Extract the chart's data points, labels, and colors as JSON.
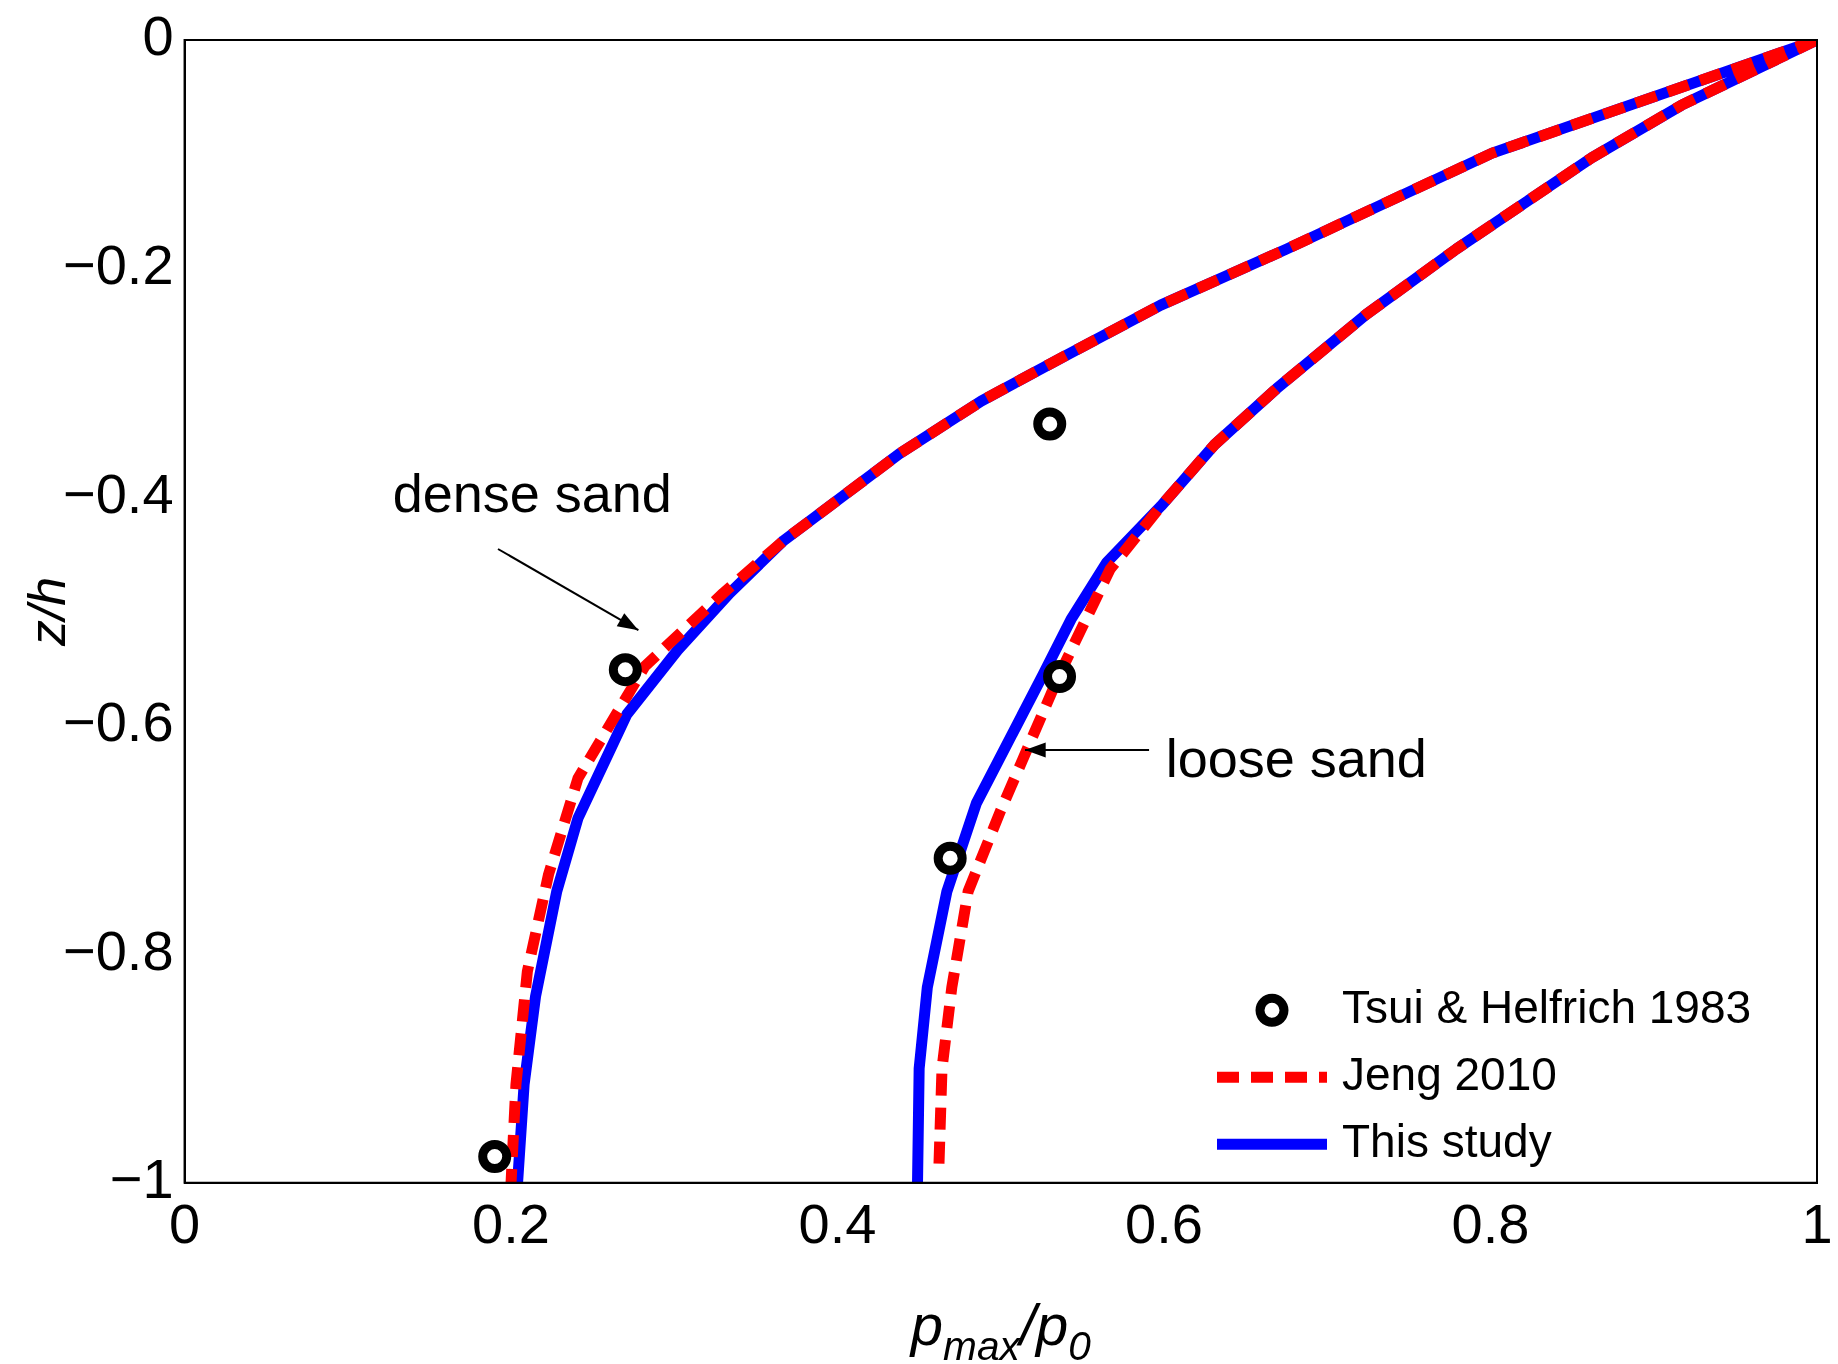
{
  "chart_data": {
    "type": "line",
    "xlabel": "p$_{max}$/p$_{0}$",
    "ylabel": "z/h",
    "xlim": [
      0,
      1
    ],
    "ylim": [
      -1,
      0
    ],
    "xticks": [
      0,
      0.2,
      0.4,
      0.6,
      0.8,
      1
    ],
    "yticks": [
      -1,
      -0.8,
      -0.6,
      -0.4,
      -0.2,
      0
    ],
    "grid": false,
    "legend": "bottom right",
    "annotations": [
      "dense sand",
      "loose sand"
    ],
    "series": [
      {
        "name": "Tsui & Helfrich 1983",
        "type": "scatter",
        "color": "#000000",
        "marker": "circle",
        "x": [
          0.27,
          0.53,
          0.536,
          0.469,
          0.19
        ],
        "values": [
          -0.551,
          -0.336,
          -0.557,
          -0.716,
          -0.977
        ]
      },
      {
        "name": "Jeng 2010",
        "color": "#ff0000",
        "line_style": "dashed",
        "marker": "none",
        "x": [
          1,
          0.801,
          0.675,
          0.598,
          0.532,
          0.488,
          0.438,
          0.367,
          0.33,
          0.282,
          0.241,
          0.223,
          0.21,
          0.203,
          0.2,
          null,
          1,
          0.917,
          0.862,
          0.779,
          0.724,
          0.669,
          0.631,
          0.598,
          0.567,
          0.536,
          0.5,
          0.48,
          0.47,
          0.464,
          0.462
        ],
        "values": [
          0,
          -0.099,
          -0.183,
          -0.232,
          -0.282,
          -0.316,
          -0.362,
          -0.438,
          -0.484,
          -0.548,
          -0.646,
          -0.73,
          -0.815,
          -0.914,
          -1,
          null,
          0,
          -0.057,
          -0.103,
          -0.183,
          -0.24,
          -0.305,
          -0.354,
          -0.408,
          -0.463,
          -0.555,
          -0.674,
          -0.745,
          -0.829,
          -0.9,
          -0.99
        ]
      },
      {
        "name": "This study",
        "color": "#0000ff",
        "line_style": "solid",
        "marker": "none",
        "x": [
          1,
          0.801,
          0.675,
          0.598,
          0.532,
          0.488,
          0.438,
          0.367,
          0.334,
          0.302,
          0.271,
          0.241,
          0.228,
          0.215,
          0.208,
          0.204,
          null,
          1,
          0.917,
          0.862,
          0.779,
          0.724,
          0.669,
          0.631,
          0.598,
          0.565,
          0.543,
          0.526,
          0.485,
          0.467,
          0.455,
          0.45,
          0.449
        ],
        "values": [
          0,
          -0.099,
          -0.183,
          -0.232,
          -0.282,
          -0.316,
          -0.362,
          -0.438,
          -0.484,
          -0.534,
          -0.59,
          -0.681,
          -0.745,
          -0.837,
          -0.914,
          -1,
          null,
          0,
          -0.057,
          -0.103,
          -0.183,
          -0.24,
          -0.305,
          -0.354,
          -0.408,
          -0.457,
          -0.507,
          -0.555,
          -0.668,
          -0.745,
          -0.829,
          -0.9,
          -1
        ]
      }
    ]
  }
}
